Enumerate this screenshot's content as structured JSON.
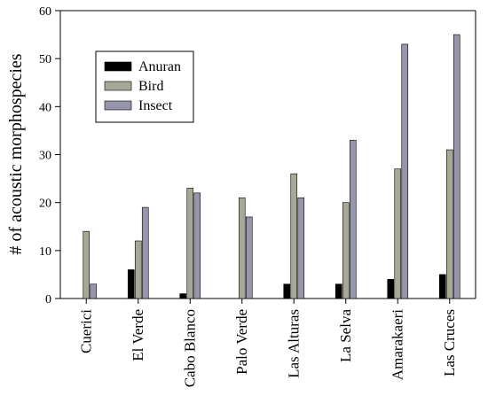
{
  "chart_data": {
    "type": "bar",
    "title": "",
    "xlabel": "",
    "ylabel": "# of acoustic morphospecies",
    "ylim": [
      0,
      60
    ],
    "yticks": [
      0,
      10,
      20,
      30,
      40,
      50,
      60
    ],
    "categories": [
      "Cuerici",
      "El Verde",
      "Cabo Blanco",
      "Palo Verde",
      "Las Alturas",
      "La Selva",
      "Amarakaeri",
      "Las Cruces"
    ],
    "series": [
      {
        "name": "Anuran",
        "color": "#000000",
        "values": [
          0,
          6,
          1,
          0,
          3,
          3,
          4,
          5
        ]
      },
      {
        "name": "Bird",
        "color": "#a8a896",
        "values": [
          14,
          12,
          23,
          21,
          26,
          20,
          27,
          31
        ]
      },
      {
        "name": "Insect",
        "color": "#9595ab",
        "values": [
          3,
          19,
          22,
          17,
          21,
          33,
          53,
          55
        ]
      }
    ],
    "legend_position": "top-left",
    "grid": false
  }
}
